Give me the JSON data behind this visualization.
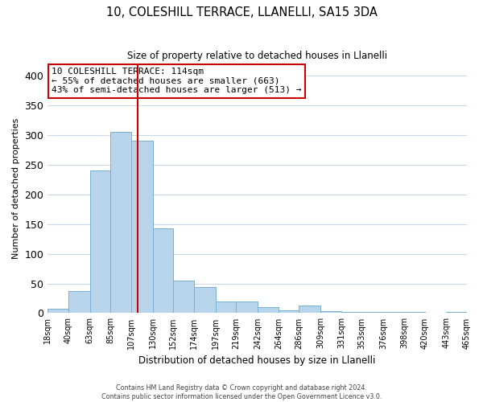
{
  "title": "10, COLESHILL TERRACE, LLANELLI, SA15 3DA",
  "subtitle": "Size of property relative to detached houses in Llanelli",
  "xlabel": "Distribution of detached houses by size in Llanelli",
  "ylabel": "Number of detached properties",
  "bar_color": "#b8d4ea",
  "bar_edge_color": "#7ab0d4",
  "background_color": "#ffffff",
  "grid_color": "#c8d8e8",
  "vline_color": "#cc0000",
  "vline_x": 114,
  "bin_edges": [
    18,
    40,
    63,
    85,
    107,
    130,
    152,
    174,
    197,
    219,
    242,
    264,
    286,
    309,
    331,
    353,
    376,
    398,
    420,
    443,
    465
  ],
  "bin_labels": [
    "18sqm",
    "40sqm",
    "63sqm",
    "85sqm",
    "107sqm",
    "130sqm",
    "152sqm",
    "174sqm",
    "197sqm",
    "219sqm",
    "242sqm",
    "264sqm",
    "286sqm",
    "309sqm",
    "331sqm",
    "353sqm",
    "376sqm",
    "398sqm",
    "420sqm",
    "443sqm",
    "465sqm"
  ],
  "counts": [
    8,
    37,
    240,
    305,
    290,
    143,
    55,
    44,
    20,
    20,
    10,
    5,
    13,
    3,
    2,
    2,
    2,
    2,
    1,
    2
  ],
  "ylim": [
    0,
    420
  ],
  "yticks": [
    0,
    50,
    100,
    150,
    200,
    250,
    300,
    350,
    400
  ],
  "annotation_title": "10 COLESHILL TERRACE: 114sqm",
  "annotation_line1": "← 55% of detached houses are smaller (663)",
  "annotation_line2": "43% of semi-detached houses are larger (513) →",
  "footer1": "Contains HM Land Registry data © Crown copyright and database right 2024.",
  "footer2": "Contains public sector information licensed under the Open Government Licence v3.0."
}
